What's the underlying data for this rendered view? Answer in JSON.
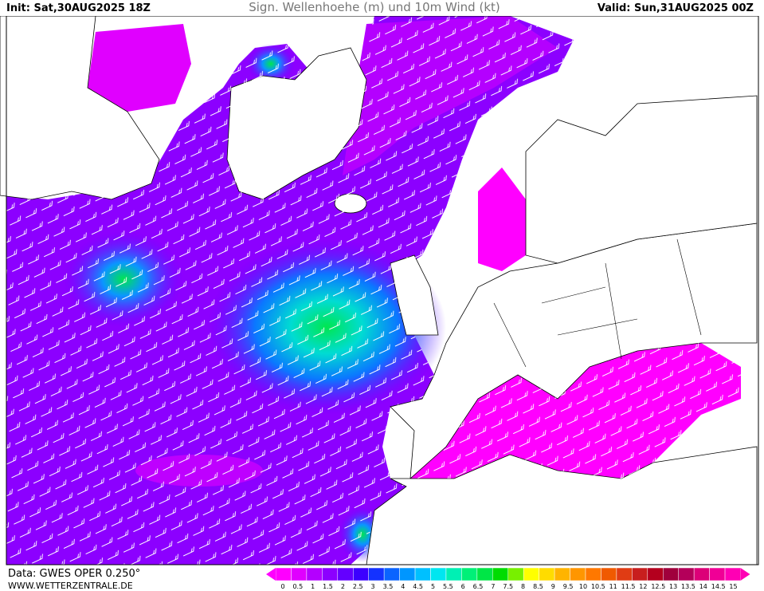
{
  "header": {
    "init": "Init: Sat,30AUG2025 18Z",
    "title": "Sign. Wellenhoehe (m) und 10m Wind (kt)",
    "valid": "Valid: Sun,31AUG2025 00Z"
  },
  "footer": {
    "data": "Data: GWES OPER 0.250°",
    "site": "WWW.WETTERZENTRALE.DE"
  },
  "legend": {
    "labels": [
      "0",
      "0.5",
      "1",
      "1.5",
      "2",
      "2.5",
      "3",
      "3.5",
      "4",
      "4.5",
      "5",
      "5.5",
      "6",
      "6.5",
      "7",
      "7.5",
      "8",
      "8.5",
      "9",
      "9.5",
      "10",
      "10.5",
      "11",
      "11.5",
      "12",
      "12.5",
      "13",
      "13.5",
      "14",
      "14.5",
      "15"
    ],
    "colors": [
      "#ff00ff",
      "#e000ff",
      "#b400ff",
      "#8c00ff",
      "#6400ff",
      "#3c00ff",
      "#1432ff",
      "#0a64ff",
      "#0096ff",
      "#00c0ff",
      "#00e6f0",
      "#00f0b4",
      "#00f078",
      "#00e646",
      "#00dc00",
      "#78f000",
      "#ffff00",
      "#ffdc00",
      "#ffb400",
      "#ff9600",
      "#ff7800",
      "#f05a00",
      "#e03c14",
      "#c81e1e",
      "#b4001e",
      "#a0003c",
      "#b4005a",
      "#dc0078",
      "#f00096",
      "#ff00b4"
    ]
  }
}
